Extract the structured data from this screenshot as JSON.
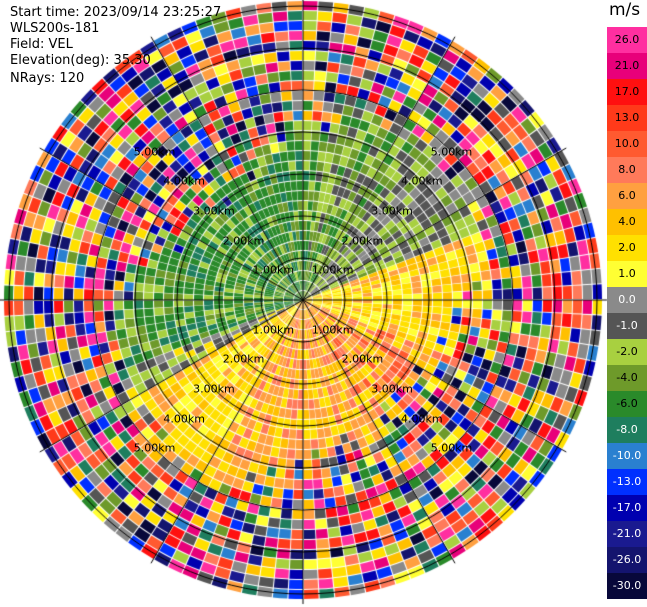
{
  "info": {
    "start_time": "Start time: 2023/09/14 23:25:27",
    "instrument": "WLS200s-181",
    "field": "Field: VEL",
    "elevation": "Elevation(deg): 35.30",
    "nrays": "NRays: 120"
  },
  "chart_data": {
    "type": "heatmap",
    "projection": "polar-ppi",
    "field": "VEL",
    "units": "m/s",
    "n_rays": 120,
    "elevation_deg": 35.3,
    "range_ring_labels": [
      "1.00km",
      "2.00km",
      "3.00km",
      "4.00km",
      "5.00km"
    ],
    "colorbar": {
      "title": "m/s",
      "tick_labels": [
        "26.0",
        "21.0",
        "17.0",
        "13.0",
        "10.0",
        "8.0",
        "6.0",
        "4.0",
        "2.0",
        "1.0",
        "0.0",
        "-1.0",
        "-2.0",
        "-4.0",
        "-6.0",
        "-8.0",
        "-10.0",
        "-13.0",
        "-17.0",
        "-21.0",
        "-26.0",
        "-30.0"
      ],
      "levels": [
        26,
        21,
        17,
        13,
        10,
        8,
        6,
        4,
        2,
        1,
        0,
        -1,
        -2,
        -4,
        -6,
        -8,
        -10,
        -13,
        -17,
        -21,
        -26,
        -30
      ],
      "colors": [
        "#ff2fa0",
        "#e8007a",
        "#ff1010",
        "#ff3a1a",
        "#ff5a30",
        "#ff7a5a",
        "#ffa040",
        "#ffc000",
        "#ffe000",
        "#ffff33",
        "#8a8a8a",
        "#555555",
        "#a8d040",
        "#6e9a2a",
        "#2a8a2a",
        "#1e7e5e",
        "#2a80d0",
        "#0030ff",
        "#0000b0",
        "#1a1a90",
        "#14146e",
        "#08083a"
      ]
    },
    "observed_pattern": {
      "north_west": "green / olive (approaching, -2 to -8 m/s)",
      "north_east_band": "grey / olive (-1 to 0 m/s)",
      "south_east": "yellow / orange (2 to 8 m/s, receding)",
      "outer_rings": "noise (mixed colors)"
    }
  }
}
